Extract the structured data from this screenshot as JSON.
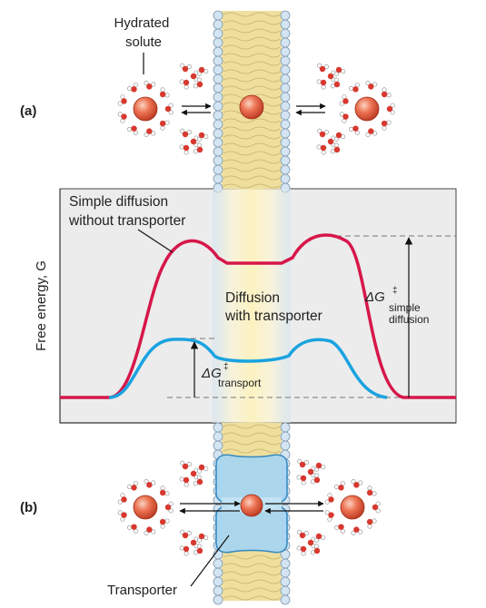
{
  "panel_a_label": "(a)",
  "panel_b_label": "(b)",
  "hydrated_solute_label": [
    "Hydrated",
    "solute"
  ],
  "y_axis_label": "Free energy, G",
  "simple_diffusion_label": [
    "Simple diffusion",
    "without transporter"
  ],
  "transporter_diffusion_label": [
    "Diffusion",
    "with transporter"
  ],
  "delta_g_simple": {
    "symbol": "ΔG",
    "superscript": "‡",
    "subscript": [
      "simple",
      "diffusion"
    ]
  },
  "delta_g_transport": {
    "symbol": "ΔG",
    "superscript": "‡",
    "subscript": "transport"
  },
  "transporter_label": "Transporter",
  "colors": {
    "simple_curve": "#d6174a",
    "transporter_curve": "#1aa3e0",
    "plot_background": "#ececec",
    "membrane": "#eedf9e",
    "head_group": "#d3e4f2",
    "transporter_protein": "#a9d6f0",
    "solute": "#e4583c",
    "water_oxygen": "#d8382f"
  },
  "icons": [
    "solute-sphere-icon",
    "water-molecule-icon",
    "equilibrium-arrows-icon",
    "lipid-bilayer-icon",
    "transporter-protein-icon"
  ]
}
